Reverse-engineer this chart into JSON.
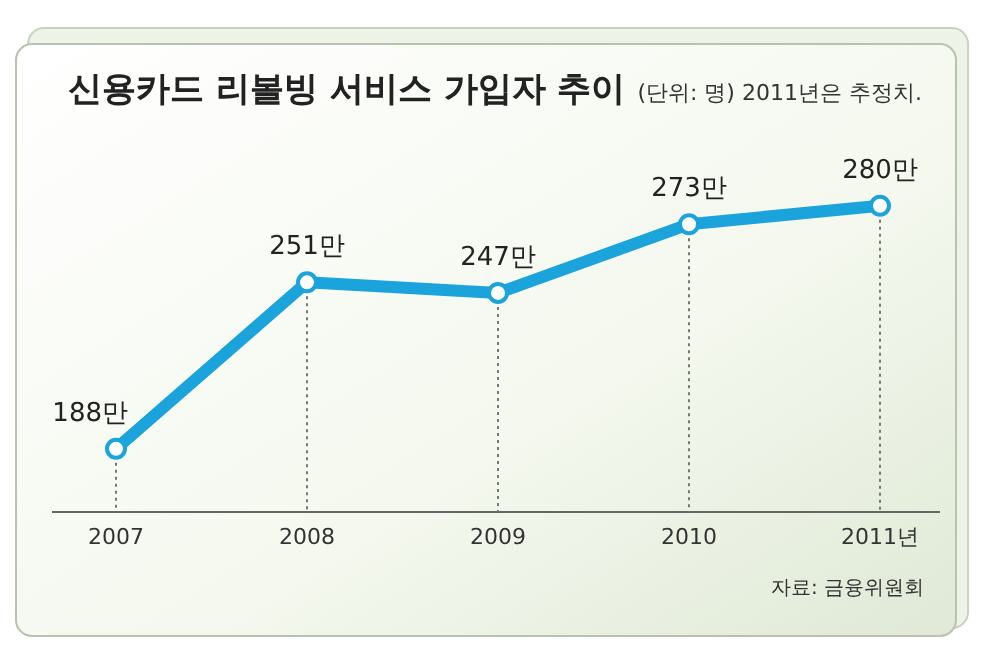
{
  "chart_data": {
    "type": "line",
    "title": "신용카드 리볼빙 서비스 가입자 추이",
    "subtitle": "(단위: 명) 2011년은 추정치.",
    "categories": [
      "2007",
      "2008",
      "2009",
      "2010",
      "2011년"
    ],
    "series": [
      {
        "color": "#1ba3db",
        "values": [
          188,
          251,
          247,
          273,
          280
        ],
        "value_labels": [
          "188만",
          "251만",
          "247만",
          "273만",
          "280만"
        ]
      }
    ],
    "marker": "circle",
    "grid": "x",
    "line_style": "solid",
    "annotations": [
      "자료: 금융위원회"
    ]
  }
}
